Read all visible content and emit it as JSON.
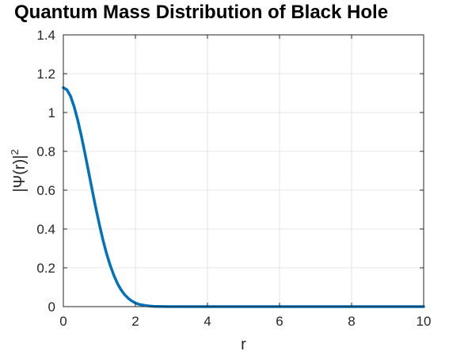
{
  "chart_data": {
    "type": "line",
    "title": "Quantum Mass Distribution of Black Hole",
    "xlabel": "r",
    "ylabel_base": "|Ψ(r)|",
    "ylabel_sup": "2",
    "xlim": [
      0,
      10
    ],
    "ylim": [
      0,
      1.4
    ],
    "xticks": [
      0,
      2,
      4,
      6,
      8,
      10
    ],
    "xtick_labels": [
      "0",
      "2",
      "4",
      "6",
      "8",
      "10"
    ],
    "yticks": [
      0,
      0.2,
      0.4,
      0.6,
      0.8,
      1.0,
      1.2,
      1.4
    ],
    "ytick_labels": [
      "0",
      "0.2",
      "0.4",
      "0.6",
      "0.8",
      "1",
      "1.2",
      "1.4"
    ],
    "grid": true,
    "box": true,
    "series": [
      {
        "color": "#0072bd",
        "x": [
          0,
          0.1,
          0.2,
          0.3,
          0.4,
          0.5,
          0.6,
          0.7,
          0.8,
          0.9,
          1.0,
          1.1,
          1.2,
          1.3,
          1.4,
          1.5,
          1.6,
          1.7,
          1.8,
          1.9,
          2.0,
          2.1,
          2.2,
          2.3,
          2.4,
          2.5,
          2.6,
          2.7,
          2.8,
          2.9,
          3.0,
          3.5,
          4.0,
          5.0,
          6.0,
          7.0,
          8.0,
          9.0,
          10.0
        ],
        "y": [
          1.128,
          1.117,
          1.084,
          1.03,
          0.96,
          0.879,
          0.789,
          0.695,
          0.601,
          0.509,
          0.423,
          0.343,
          0.273,
          0.213,
          0.162,
          0.12,
          0.087,
          0.062,
          0.043,
          0.029,
          0.019,
          0.012,
          0.008,
          0.005,
          0.003,
          0.0017,
          0.001,
          0.0005,
          0.0003,
          0.0002,
          0.0001,
          0.0,
          0.0,
          0.0,
          0.0,
          0.0,
          0.0,
          0.0,
          0.0
        ]
      }
    ]
  }
}
